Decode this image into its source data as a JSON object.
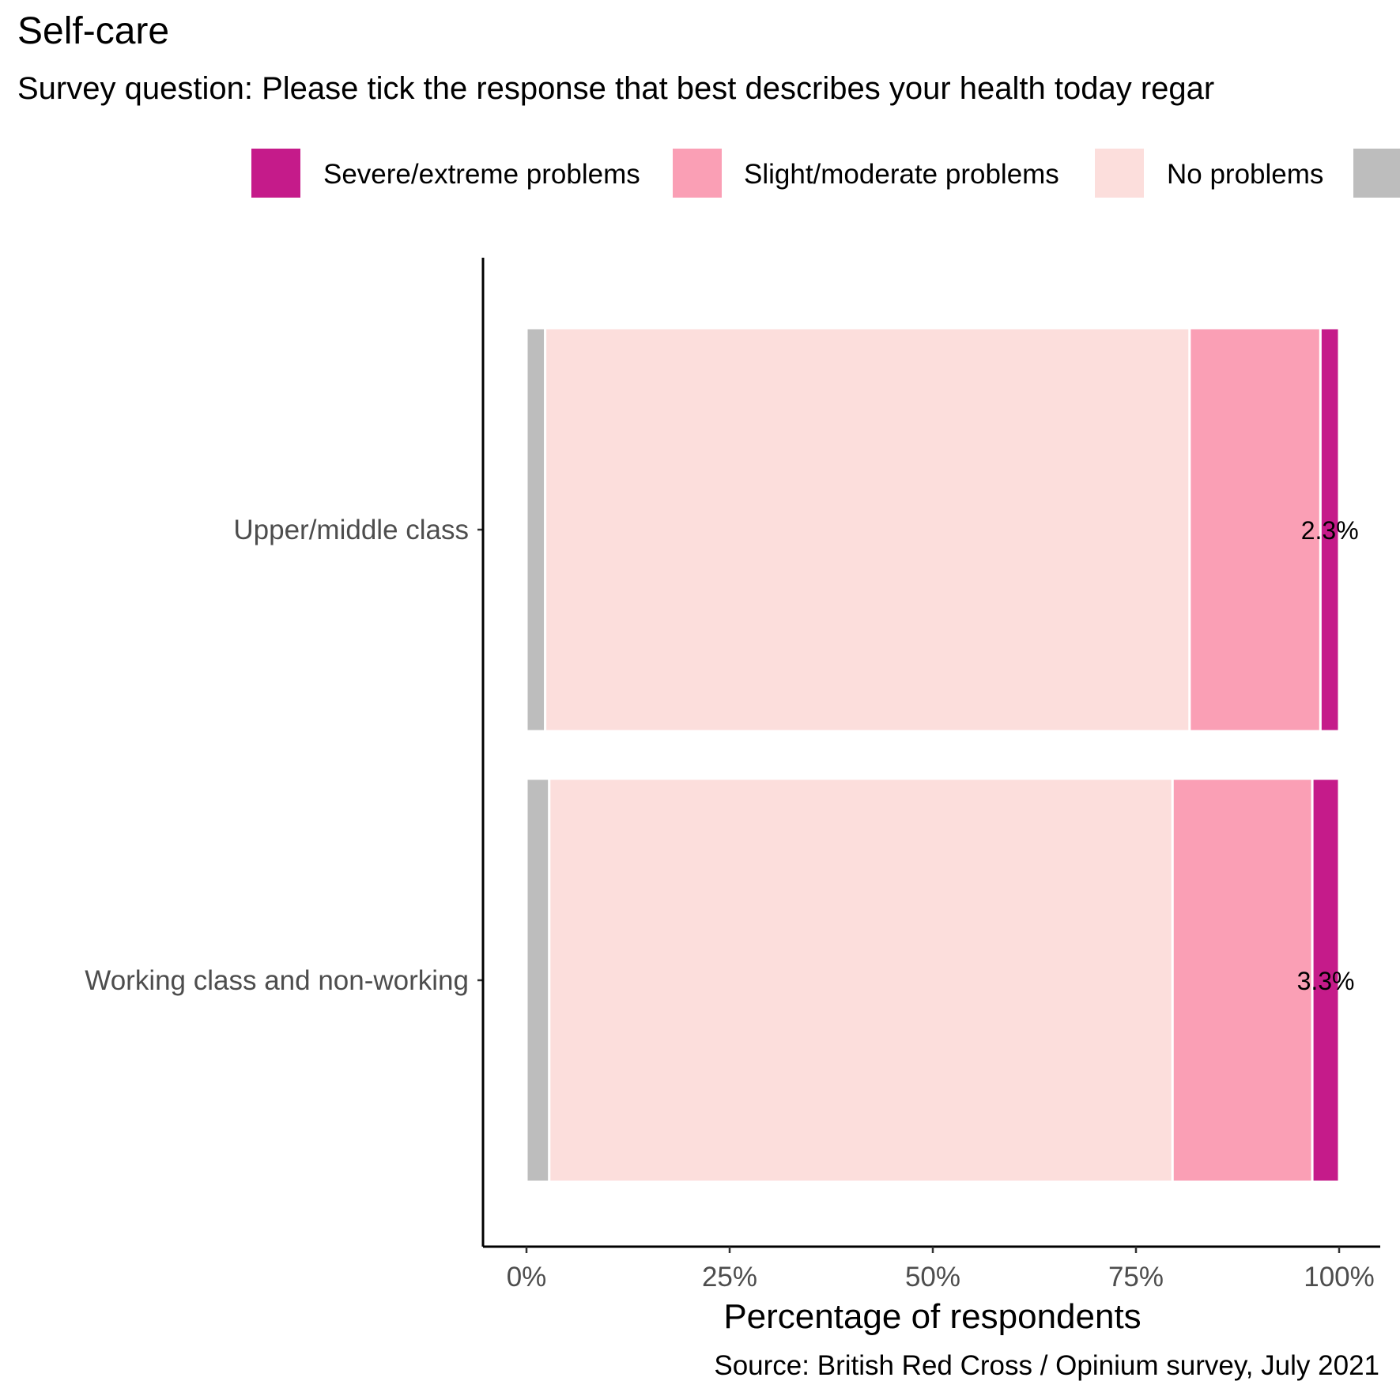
{
  "title": "Self-care",
  "subtitle": "Survey question: Please tick the response that best describes your health today regar",
  "caption": "Source: British Red Cross / Opinium survey, July 2021",
  "legend": [
    {
      "label": "Severe/extreme problems",
      "color": "#c51b8a"
    },
    {
      "label": "Slight/moderate problems",
      "color": "#fa9fb5"
    },
    {
      "label": "No problems",
      "color": "#fcdedc"
    },
    {
      "label": "",
      "color": "#bdbdbd"
    }
  ],
  "chart_data": {
    "type": "bar",
    "orientation": "horizontal",
    "stacked": true,
    "categories": [
      "Upper/middle class",
      "Working class and non-working"
    ],
    "series": [
      {
        "name": "",
        "color": "#bdbdbd",
        "values": [
          2.3,
          2.8
        ]
      },
      {
        "name": "No problems",
        "color": "#fcdedc",
        "values": [
          79.3,
          76.7
        ]
      },
      {
        "name": "Slight/moderate problems",
        "color": "#fa9fb5",
        "values": [
          16.1,
          17.2
        ]
      },
      {
        "name": "Severe/extreme problems",
        "color": "#c51b8a",
        "values": [
          2.3,
          3.3
        ]
      }
    ],
    "data_labels": [
      "2.3%",
      "3.3%"
    ],
    "xlabel": "Percentage of respondents",
    "ylabel": "",
    "xlim": [
      0,
      100
    ],
    "xticks": [
      "0%",
      "25%",
      "50%",
      "75%",
      "100%"
    ],
    "grid": false,
    "legend_position": "top"
  }
}
